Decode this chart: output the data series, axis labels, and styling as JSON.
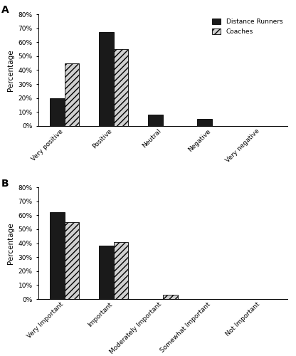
{
  "chart_A": {
    "categories": [
      "Very positive",
      "Positive",
      "Neutral",
      "Negative",
      "Very negative"
    ],
    "runners": [
      20,
      67,
      8,
      5,
      0
    ],
    "coaches": [
      45,
      55,
      0,
      0,
      0
    ],
    "ylabel": "Percentage",
    "ylim": [
      0,
      80
    ],
    "yticks": [
      0,
      10,
      20,
      30,
      40,
      50,
      60,
      70,
      80
    ],
    "ytick_labels": [
      "0%",
      "10%",
      "20%",
      "30%",
      "40%",
      "50%",
      "60%",
      "70%",
      "80%"
    ],
    "label": "A"
  },
  "chart_B": {
    "categories": [
      "Very Important",
      "Important",
      "Moderately Important",
      "Somewhat Important",
      "Not Important"
    ],
    "runners": [
      62,
      38,
      0,
      0,
      0
    ],
    "coaches": [
      55,
      41,
      3,
      0,
      0
    ],
    "ylabel": "Percentage",
    "ylim": [
      0,
      80
    ],
    "yticks": [
      0,
      10,
      20,
      30,
      40,
      50,
      60,
      70,
      80
    ],
    "ytick_labels": [
      "0%",
      "10%",
      "20%",
      "30%",
      "40%",
      "50%",
      "60%",
      "70%",
      "80%"
    ],
    "label": "B"
  },
  "legend_labels": [
    "Distance Runners",
    "Coaches"
  ],
  "bar_width": 0.3,
  "runner_color": "#1a1a1a",
  "coach_color": "#d0d0d0",
  "hatch_pattern": "////"
}
